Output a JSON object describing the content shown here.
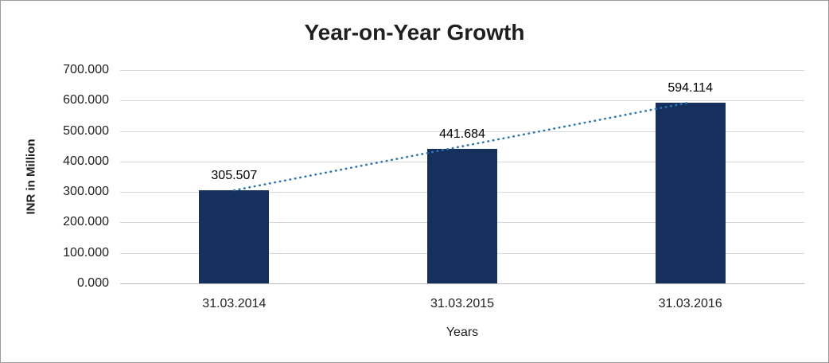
{
  "chart_data": {
    "type": "bar",
    "title": "Year-on-Year Growth",
    "xlabel": "Years",
    "ylabel": "INR in Million",
    "categories": [
      "31.03.2014",
      "31.03.2015",
      "31.03.2016"
    ],
    "values": [
      305.507,
      441.684,
      594.114
    ],
    "value_labels": [
      "305.507",
      "441.684",
      "594.114"
    ],
    "ylim": [
      0,
      700
    ],
    "ytick_step": 100,
    "ytick_labels": [
      "0.000",
      "100.000",
      "200.000",
      "300.000",
      "400.000",
      "500.000",
      "600.000",
      "700.000"
    ],
    "grid": true,
    "legend": "none",
    "bar_color": "#16305e",
    "trendline_color": "#2e75b6",
    "gridline_color": "#d9d9d9",
    "label_color": "#1f1f1f"
  }
}
